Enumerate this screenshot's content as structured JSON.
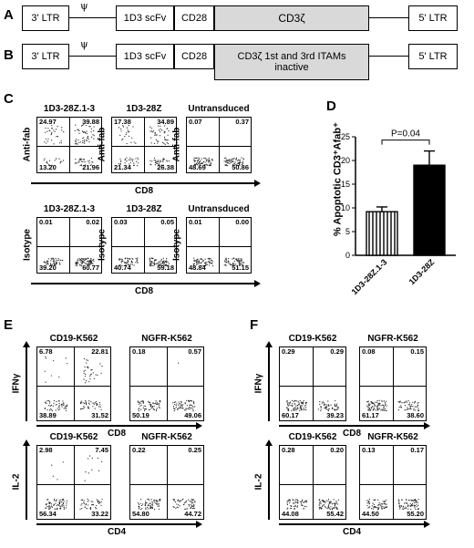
{
  "panels": {
    "A": "A",
    "B": "B",
    "C": "C",
    "D": "D",
    "E": "E",
    "F": "F"
  },
  "constructA": {
    "ltr3": "3' LTR",
    "psi": "ψ",
    "scfv": "1D3 scFv",
    "cd28": "CD28",
    "cd3z": "CD3ζ",
    "ltr5": "5' LTR"
  },
  "constructB": {
    "ltr3": "3' LTR",
    "psi": "ψ",
    "scfv": "1D3 scFv",
    "cd28": "CD28",
    "cd3z_line1": "CD3ζ 1st and 3rd ITAMs",
    "cd3z_line2": "inactive",
    "ltr5": "5' LTR"
  },
  "panelC": {
    "top": [
      {
        "title": "1D3-28Z.1-3",
        "ul": "24.97",
        "ur": "39.88",
        "ll": "13.20",
        "lr": "21.96"
      },
      {
        "title": "1D3-28Z",
        "ul": "17.38",
        "ur": "34.89",
        "ll": "21.34",
        "lr": "26.38"
      },
      {
        "title": "Untransduced",
        "ul": "0.07",
        "ur": "0.37",
        "ll": "48.69",
        "lr": "50.86"
      }
    ],
    "bottom": [
      {
        "title": "1D3-28Z.1-3",
        "ul": "0.01",
        "ur": "0.02",
        "ll": "39.20",
        "lr": "60.77"
      },
      {
        "title": "1D3-28Z",
        "ul": "0.03",
        "ur": "0.05",
        "ll": "40.74",
        "lr": "59.18"
      },
      {
        "title": "Untransduced",
        "ul": "0.01",
        "ur": "0.00",
        "ll": "48.84",
        "lr": "51.15"
      }
    ],
    "ylab_top": "Anti-fab",
    "ylab_bottom": "Isotype",
    "xlab": "CD8"
  },
  "panelE": {
    "top": [
      {
        "title": "CD19-K562",
        "ul": "6.78",
        "ur": "22.81",
        "ll": "38.89",
        "lr": "31.52"
      },
      {
        "title": "NGFR-K562",
        "ul": "0.18",
        "ur": "0.57",
        "ll": "50.19",
        "lr": "49.06"
      }
    ],
    "bottom": [
      {
        "title": "CD19-K562",
        "ul": "2.98",
        "ur": "7.45",
        "ll": "56.34",
        "lr": "33.22"
      },
      {
        "title": "NGFR-K562",
        "ul": "0.22",
        "ur": "0.25",
        "ll": "54.80",
        "lr": "44.72"
      }
    ],
    "ylab_top": "IFNγ",
    "ylab_bottom": "IL-2",
    "xlab_top": "CD8",
    "xlab_bottom": "CD4"
  },
  "panelF": {
    "top": [
      {
        "title": "CD19-K562",
        "ul": "0.29",
        "ur": "0.29",
        "ll": "60.17",
        "lr": "39.23"
      },
      {
        "title": "NGFR-K562",
        "ul": "0.08",
        "ur": "0.15",
        "ll": "61.17",
        "lr": "38.60"
      }
    ],
    "bottom": [
      {
        "title": "CD19-K562",
        "ul": "0.28",
        "ur": "0.20",
        "ll": "44.08",
        "lr": "55.42"
      },
      {
        "title": "NGFR-K562",
        "ul": "0.13",
        "ur": "0.17",
        "ll": "44.50",
        "lr": "55.20"
      }
    ],
    "ylab_top": "IFNγ",
    "ylab_bottom": "IL-2",
    "xlab_top": "CD8",
    "xlab_bottom": "CD4"
  },
  "chart_data": {
    "type": "bar",
    "categories": [
      "1D3-28Z.1-3",
      "1D3-28Z"
    ],
    "values": [
      9.2,
      19.0
    ],
    "errors": [
      1.0,
      3.0
    ],
    "ylabel": "% Apoptotic CD3⁺Afab⁺",
    "ylim": [
      0,
      25
    ],
    "yticks": [
      "0",
      "5",
      "10",
      "15",
      "20",
      "25"
    ],
    "annotation": "P=0.04"
  }
}
